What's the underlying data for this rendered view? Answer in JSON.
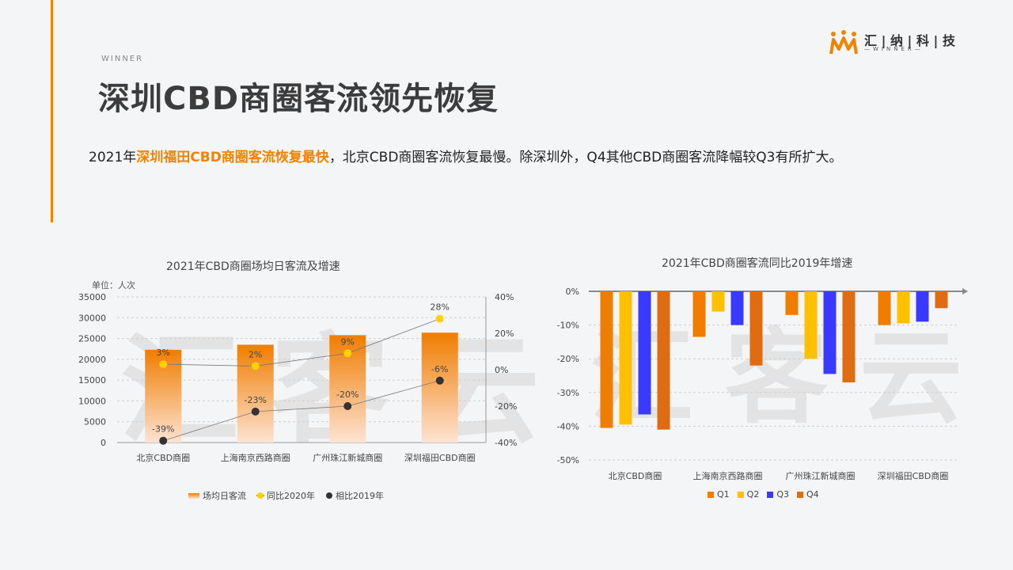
{
  "header": {
    "brand_small": "WINNER",
    "title": "深圳CBD商圈客流领先恢复",
    "summary_pre": "2021年",
    "summary_highlight": "深圳福田CBD商圈客流恢复最快",
    "summary_post": "，北京CBD商圈客流恢复最慢。除深圳外，Q4其他CBD商圈客流降幅较Q3有所扩大。"
  },
  "logo": {
    "name": "汇 | 纳 | 科 | 技",
    "sub": "—WINNER—"
  },
  "watermark": "汇客云",
  "colors": {
    "accent": "#f08300",
    "q1": "#f07d00",
    "q2": "#ffc000",
    "q3": "#3a3aff",
    "q4": "#e06c12",
    "yoy2020_dot": "#ffd200",
    "vs2019_dot": "#333333"
  },
  "chart_data": [
    {
      "type": "bar",
      "title": "2021年CBD商圈场均日客流及增速",
      "unit_label": "单位：人次",
      "categories": [
        "北京CBD商圈",
        "上海南京西路商圈",
        "广州珠江新城商圈",
        "深圳福田CBD商圈"
      ],
      "ylim": [
        0,
        35000
      ],
      "yticks": [
        0,
        5000,
        10000,
        15000,
        20000,
        25000,
        30000,
        35000
      ],
      "y2lim": [
        -40,
        40
      ],
      "y2ticks": [
        "-40%",
        "-20%",
        "0%",
        "20%",
        "40%"
      ],
      "series": [
        {
          "name": "场均日客流",
          "kind": "bar",
          "values": [
            22300,
            23500,
            25800,
            26400
          ]
        },
        {
          "name": "同比2020年",
          "kind": "line",
          "axis": "right",
          "values": [
            3,
            2,
            9,
            28
          ],
          "labels": [
            "3%",
            "2%",
            "9%",
            "28%"
          ]
        },
        {
          "name": "相比2019年",
          "kind": "line",
          "axis": "right",
          "values": [
            -39,
            -23,
            -20,
            -6
          ],
          "labels": [
            "-39%",
            "-23%",
            "-20%",
            "-6%"
          ]
        }
      ],
      "grid": true,
      "legend": "bottom"
    },
    {
      "type": "bar",
      "title": "2021年CBD商圈客流同比2019年增速",
      "categories": [
        "北京CBD商圈",
        "上海南京西路商圈",
        "广州珠江新城商圈",
        "深圳福田CBD商圈"
      ],
      "ylim": [
        -50,
        0
      ],
      "yticks": [
        "0%",
        "-10%",
        "-20%",
        "-30%",
        "-40%",
        "-50%"
      ],
      "series": [
        {
          "name": "Q1",
          "values": [
            -40.5,
            -13.5,
            -7,
            -10
          ]
        },
        {
          "name": "Q2",
          "values": [
            -39.5,
            -6,
            -20,
            -9.5
          ]
        },
        {
          "name": "Q3",
          "values": [
            -36.5,
            -10,
            -24.5,
            -9
          ]
        },
        {
          "name": "Q4",
          "values": [
            -41,
            -22,
            -27,
            -5
          ]
        }
      ],
      "grid": true,
      "legend": "bottom"
    }
  ]
}
